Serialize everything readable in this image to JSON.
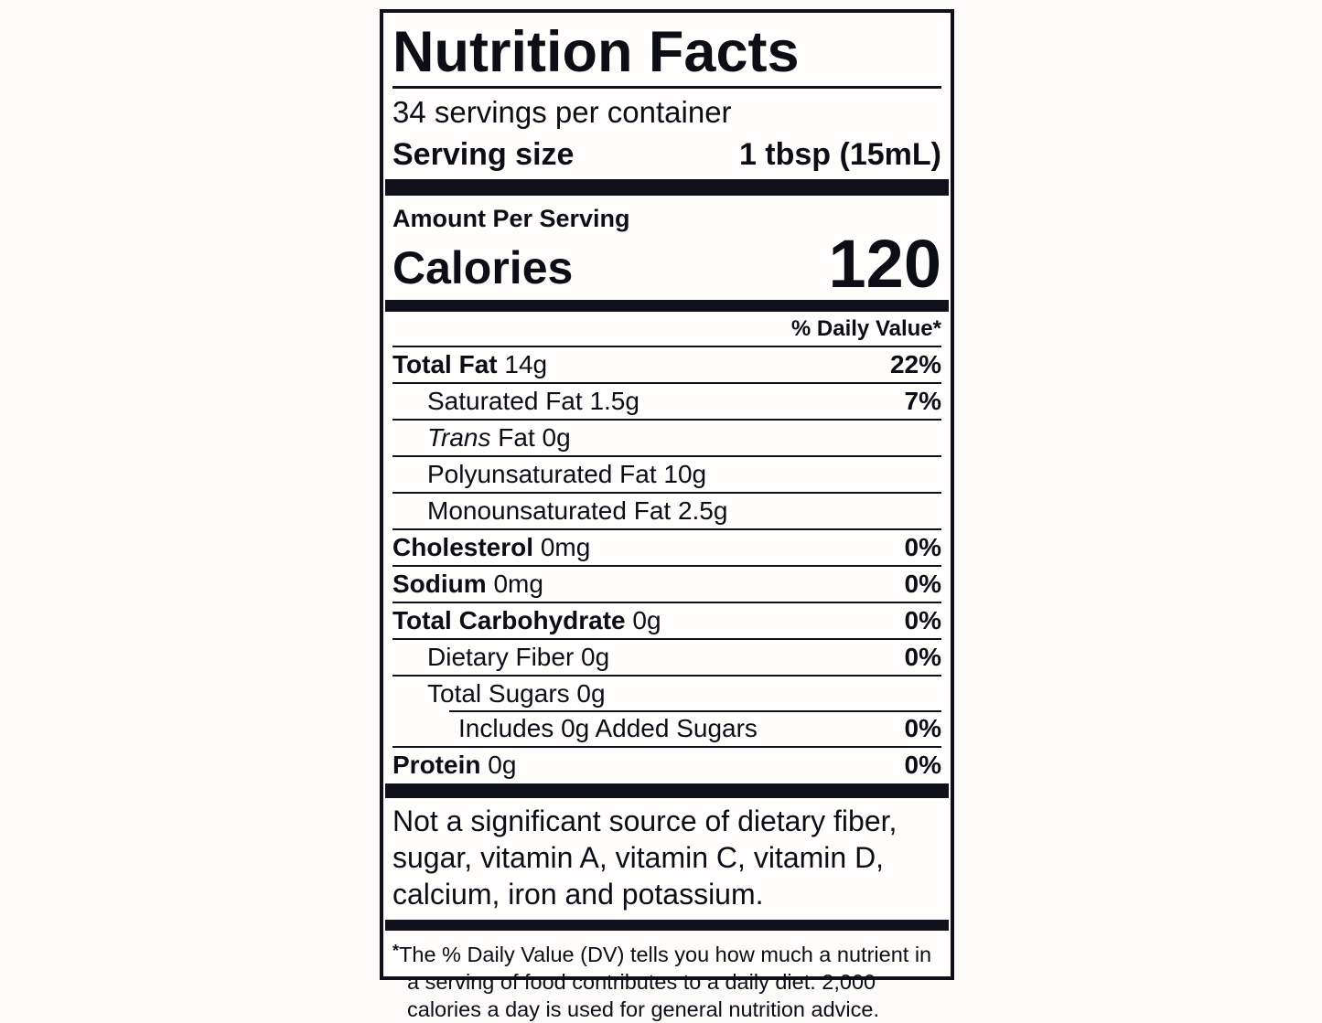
{
  "label": {
    "title": "Nutrition Facts",
    "servings_per_container": "34 servings per container",
    "serving_size_label": "Serving size",
    "serving_size_value": "1 tbsp (15mL)",
    "amount_per_serving": "Amount Per Serving",
    "calories_label": "Calories",
    "calories_value": "120",
    "daily_value_header": "% Daily Value*",
    "rows": [
      {
        "name": "Total Fat",
        "amount": "14g",
        "dv": "22%"
      },
      {
        "name": "Saturated Fat",
        "amount": "1.5g",
        "dv": "7%"
      },
      {
        "name": "Trans",
        "amount": "Fat 0g",
        "dv": ""
      },
      {
        "name": "Polyunsaturated Fat",
        "amount": "10g",
        "dv": ""
      },
      {
        "name": "Monounsaturated Fat",
        "amount": "2.5g",
        "dv": ""
      },
      {
        "name": "Cholesterol",
        "amount": "0mg",
        "dv": "0%"
      },
      {
        "name": "Sodium",
        "amount": "0mg",
        "dv": "0%"
      },
      {
        "name": "Total Carbohydrate",
        "amount": "0g",
        "dv": "0%"
      },
      {
        "name": "Dietary Fiber",
        "amount": "0g",
        "dv": "0%"
      },
      {
        "name": "Total Sugars",
        "amount": "0g",
        "dv": ""
      },
      {
        "name": "Includes",
        "amount": "0g Added Sugars",
        "dv": "0%"
      },
      {
        "name": "Protein",
        "amount": "0g",
        "dv": "0%"
      }
    ],
    "not_significant": "Not a significant source of dietary fiber, sugar, vitamin A, vitamin C, vitamin D, calcium, iron and potassium.",
    "footnote_marker": "*",
    "footnote_text": "The % Daily Value (DV) tells you how much a nutrient in a serving of food contributes to a daily diet. 2,000 calories a day is used for general nutrition advice.",
    "colors": {
      "ink": "#10101a",
      "label_background": "#fffefd",
      "page_background": "#fdfbfa"
    }
  }
}
